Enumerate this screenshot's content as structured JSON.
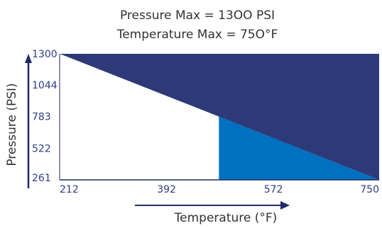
{
  "chart_data": {
    "type": "area",
    "title_lines": [
      "Pressure Max = 13OO PSI",
      "Temperature Max = 75O°F"
    ],
    "xlabel": "Temperature (°F)",
    "ylabel": "Pressure (PSI)",
    "x_ticks": [
      212,
      392,
      572,
      750
    ],
    "y_ticks": [
      261,
      522,
      783,
      1044,
      1300
    ],
    "xlim": [
      212,
      750
    ],
    "ylim": [
      261,
      1300
    ],
    "rating_line": {
      "x": [
        212,
        750
      ],
      "y": [
        1300,
        261
      ]
    },
    "regions": [
      {
        "name": "exceeds-rating",
        "color": "#2e3a78",
        "points": [
          [
            212,
            1300
          ],
          [
            750,
            1300
          ],
          [
            750,
            261
          ]
        ]
      },
      {
        "name": "caution-zone",
        "color": "#0070c0",
        "points": [
          [
            480,
            783
          ],
          [
            750,
            261
          ],
          [
            480,
            261
          ]
        ]
      },
      {
        "name": "allowed",
        "color": "#ffffff",
        "points": [
          [
            212,
            1300
          ],
          [
            480,
            783
          ],
          [
            480,
            261
          ],
          [
            212,
            261
          ]
        ]
      }
    ],
    "colors": {
      "axis": "#1f2a66",
      "tick_text": "#2f3a8a",
      "title_text": "#333333"
    },
    "grid": false,
    "legend": "none"
  }
}
